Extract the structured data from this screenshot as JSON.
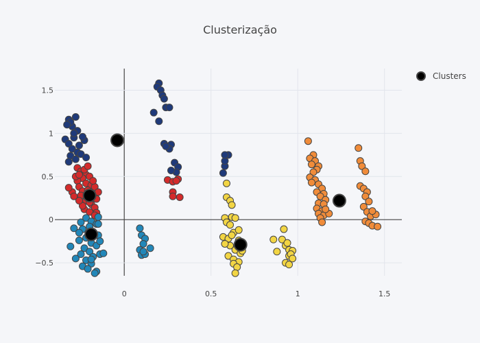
{
  "title": "Clusterização",
  "legend": {
    "label": "Clusters"
  },
  "chart_data": {
    "type": "scatter",
    "title": "Clusterização",
    "xlabel": "",
    "ylabel": "",
    "xlim": [
      -0.4,
      1.6
    ],
    "ylim": [
      -0.65,
      1.75
    ],
    "grid": true,
    "legend_position": "top-right",
    "x_ticks": [
      0,
      0.5,
      1,
      1.5
    ],
    "x_tick_labels": [
      "0",
      "0.5",
      "1",
      "1.5"
    ],
    "y_ticks": [
      -0.5,
      0,
      0.5,
      1,
      1.5
    ],
    "y_tick_labels": [
      "−0.5",
      "0",
      "0.5",
      "1",
      "1.5"
    ],
    "colors": {
      "dark_blue": "#1f3a7a",
      "red": "#d42b2b",
      "teal": "#2287b9",
      "yellow": "#f2d544",
      "orange": "#f08c3a",
      "centroid": "#000000"
    },
    "series": [
      {
        "name": "Clusters",
        "color": "#000000",
        "points": [
          [
            -0.04,
            0.92
          ],
          [
            -0.2,
            0.28
          ],
          [
            -0.19,
            -0.17
          ],
          [
            0.67,
            -0.29
          ],
          [
            1.24,
            0.22
          ]
        ]
      },
      {
        "color": "#1f3a7a",
        "points": [
          [
            -0.32,
            1.16
          ],
          [
            -0.28,
            1.19
          ],
          [
            -0.3,
            1.08
          ],
          [
            -0.27,
            1.03
          ],
          [
            -0.31,
            1.13
          ],
          [
            -0.34,
            0.93
          ],
          [
            -0.32,
            0.88
          ],
          [
            -0.29,
            0.95
          ],
          [
            -0.26,
            0.86
          ],
          [
            -0.23,
            0.92
          ],
          [
            -0.24,
            0.96
          ],
          [
            -0.3,
            0.82
          ],
          [
            -0.27,
            0.78
          ],
          [
            -0.31,
            0.74
          ],
          [
            -0.25,
            0.76
          ],
          [
            -0.28,
            0.7
          ],
          [
            -0.32,
            0.67
          ],
          [
            -0.22,
            0.72
          ],
          [
            -0.29,
            1.0
          ],
          [
            -0.33,
            1.1
          ],
          [
            0.2,
            1.58
          ],
          [
            0.19,
            1.54
          ],
          [
            0.21,
            1.5
          ],
          [
            0.22,
            1.44
          ],
          [
            0.23,
            1.4
          ],
          [
            0.24,
            1.3
          ],
          [
            0.26,
            1.3
          ],
          [
            0.17,
            1.24
          ],
          [
            0.2,
            1.14
          ],
          [
            0.23,
            0.88
          ],
          [
            0.27,
            0.87
          ],
          [
            0.26,
            0.82
          ],
          [
            0.24,
            0.85
          ],
          [
            0.29,
            0.66
          ],
          [
            0.31,
            0.61
          ],
          [
            0.3,
            0.55
          ],
          [
            0.27,
            0.57
          ],
          [
            0.57,
            0.54
          ],
          [
            0.58,
            0.62
          ],
          [
            0.58,
            0.68
          ],
          [
            0.6,
            0.75
          ],
          [
            0.58,
            0.75
          ]
        ]
      },
      {
        "color": "#d42b2b",
        "points": [
          [
            -0.27,
            0.6
          ],
          [
            -0.25,
            0.56
          ],
          [
            -0.22,
            0.52
          ],
          [
            -0.2,
            0.5
          ],
          [
            -0.24,
            0.48
          ],
          [
            -0.27,
            0.45
          ],
          [
            -0.22,
            0.42
          ],
          [
            -0.19,
            0.4
          ],
          [
            -0.17,
            0.38
          ],
          [
            -0.26,
            0.38
          ],
          [
            -0.24,
            0.33
          ],
          [
            -0.21,
            0.3
          ],
          [
            -0.18,
            0.27
          ],
          [
            -0.16,
            0.24
          ],
          [
            -0.25,
            0.28
          ],
          [
            -0.22,
            0.22
          ],
          [
            -0.19,
            0.18
          ],
          [
            -0.17,
            0.14
          ],
          [
            -0.23,
            0.12
          ],
          [
            -0.2,
            0.09
          ],
          [
            -0.16,
            0.08
          ],
          [
            -0.3,
            0.32
          ],
          [
            -0.32,
            0.37
          ],
          [
            -0.28,
            0.5
          ],
          [
            -0.23,
            0.58
          ],
          [
            -0.21,
            0.62
          ],
          [
            -0.18,
            0.45
          ],
          [
            -0.15,
            0.32
          ],
          [
            -0.2,
            0.2
          ],
          [
            -0.24,
            0.16
          ],
          [
            -0.17,
            0.05
          ],
          [
            -0.26,
            0.22
          ],
          [
            -0.29,
            0.27
          ],
          [
            -0.21,
            0.34
          ],
          [
            -0.26,
            0.52
          ],
          [
            0.25,
            0.46
          ],
          [
            0.28,
            0.44
          ],
          [
            0.31,
            0.47
          ],
          [
            0.3,
            0.45
          ],
          [
            0.28,
            0.32
          ],
          [
            0.28,
            0.27
          ],
          [
            0.32,
            0.26
          ]
        ]
      },
      {
        "color": "#2287b9",
        "points": [
          [
            -0.22,
            0.02
          ],
          [
            -0.19,
            -0.02
          ],
          [
            -0.16,
            -0.05
          ],
          [
            -0.2,
            -0.08
          ],
          [
            -0.24,
            -0.11
          ],
          [
            -0.18,
            -0.14
          ],
          [
            -0.15,
            -0.18
          ],
          [
            -0.22,
            -0.21
          ],
          [
            -0.26,
            -0.24
          ],
          [
            -0.19,
            -0.27
          ],
          [
            -0.16,
            -0.3
          ],
          [
            -0.23,
            -0.33
          ],
          [
            -0.2,
            -0.37
          ],
          [
            -0.25,
            -0.4
          ],
          [
            -0.18,
            -0.43
          ],
          [
            -0.22,
            -0.47
          ],
          [
            -0.19,
            -0.51
          ],
          [
            -0.24,
            -0.54
          ],
          [
            -0.21,
            -0.57
          ],
          [
            -0.16,
            -0.6
          ],
          [
            -0.17,
            -0.62
          ],
          [
            -0.14,
            -0.4
          ],
          [
            -0.15,
            -0.05
          ],
          [
            -0.25,
            -0.03
          ],
          [
            -0.29,
            -0.1
          ],
          [
            -0.31,
            -0.31
          ],
          [
            -0.15,
            0.03
          ],
          [
            -0.12,
            -0.39
          ],
          [
            -0.26,
            -0.15
          ],
          [
            -0.28,
            -0.45
          ],
          [
            -0.14,
            -0.25
          ],
          [
            -0.19,
            -0.46
          ],
          [
            0.09,
            -0.1
          ],
          [
            0.1,
            -0.18
          ],
          [
            0.12,
            -0.22
          ],
          [
            0.15,
            -0.33
          ],
          [
            0.11,
            -0.28
          ],
          [
            0.09,
            -0.35
          ],
          [
            0.1,
            -0.41
          ],
          [
            0.12,
            -0.4
          ],
          [
            0.11,
            -0.37
          ]
        ]
      },
      {
        "color": "#f2d544",
        "points": [
          [
            0.59,
            0.42
          ],
          [
            0.59,
            0.26
          ],
          [
            0.61,
            0.22
          ],
          [
            0.62,
            0.17
          ],
          [
            0.58,
            0.02
          ],
          [
            0.62,
            0.03
          ],
          [
            0.64,
            0.02
          ],
          [
            0.59,
            -0.03
          ],
          [
            0.61,
            -0.06
          ],
          [
            0.57,
            -0.2
          ],
          [
            0.63,
            -0.15
          ],
          [
            0.6,
            -0.22
          ],
          [
            0.66,
            -0.24
          ],
          [
            0.61,
            -0.3
          ],
          [
            0.64,
            -0.35
          ],
          [
            0.67,
            -0.39
          ],
          [
            0.6,
            -0.42
          ],
          [
            0.63,
            -0.46
          ],
          [
            0.66,
            -0.49
          ],
          [
            0.63,
            -0.51
          ],
          [
            0.65,
            -0.55
          ],
          [
            0.64,
            -0.62
          ],
          [
            0.68,
            -0.36
          ],
          [
            0.62,
            -0.18
          ],
          [
            0.58,
            -0.28
          ],
          [
            0.66,
            -0.12
          ],
          [
            0.86,
            -0.23
          ],
          [
            0.88,
            -0.37
          ],
          [
            0.91,
            -0.23
          ],
          [
            0.92,
            -0.11
          ],
          [
            0.93,
            -0.3
          ],
          [
            0.94,
            -0.27
          ],
          [
            0.95,
            -0.35
          ],
          [
            0.97,
            -0.36
          ],
          [
            0.95,
            -0.42
          ],
          [
            0.96,
            -0.4
          ],
          [
            0.93,
            -0.5
          ],
          [
            0.95,
            -0.52
          ],
          [
            0.97,
            -0.45
          ]
        ]
      },
      {
        "color": "#f08c3a",
        "points": [
          [
            1.06,
            0.91
          ],
          [
            1.09,
            0.75
          ],
          [
            1.07,
            0.71
          ],
          [
            1.1,
            0.68
          ],
          [
            1.08,
            0.64
          ],
          [
            1.12,
            0.62
          ],
          [
            1.11,
            0.58
          ],
          [
            1.09,
            0.55
          ],
          [
            1.07,
            0.49
          ],
          [
            1.1,
            0.46
          ],
          [
            1.08,
            0.43
          ],
          [
            1.12,
            0.41
          ],
          [
            1.14,
            0.36
          ],
          [
            1.11,
            0.32
          ],
          [
            1.15,
            0.3
          ],
          [
            1.13,
            0.27
          ],
          [
            1.16,
            0.23
          ],
          [
            1.12,
            0.19
          ],
          [
            1.11,
            0.13
          ],
          [
            1.14,
            0.1
          ],
          [
            1.12,
            0.07
          ],
          [
            1.15,
            0.05
          ],
          [
            1.13,
            0.02
          ],
          [
            1.14,
            -0.03
          ],
          [
            1.18,
            0.07
          ],
          [
            1.15,
            0.18
          ],
          [
            1.16,
            0.12
          ],
          [
            1.35,
            0.83
          ],
          [
            1.36,
            0.68
          ],
          [
            1.37,
            0.62
          ],
          [
            1.39,
            0.56
          ],
          [
            1.36,
            0.39
          ],
          [
            1.38,
            0.36
          ],
          [
            1.4,
            0.32
          ],
          [
            1.39,
            0.27
          ],
          [
            1.41,
            0.21
          ],
          [
            1.38,
            0.15
          ],
          [
            1.4,
            0.09
          ],
          [
            1.42,
            0.04
          ],
          [
            1.39,
            -0.02
          ],
          [
            1.41,
            -0.04
          ],
          [
            1.43,
            -0.07
          ],
          [
            1.45,
            0.06
          ],
          [
            1.43,
            0.1
          ],
          [
            1.46,
            -0.08
          ]
        ]
      }
    ]
  }
}
